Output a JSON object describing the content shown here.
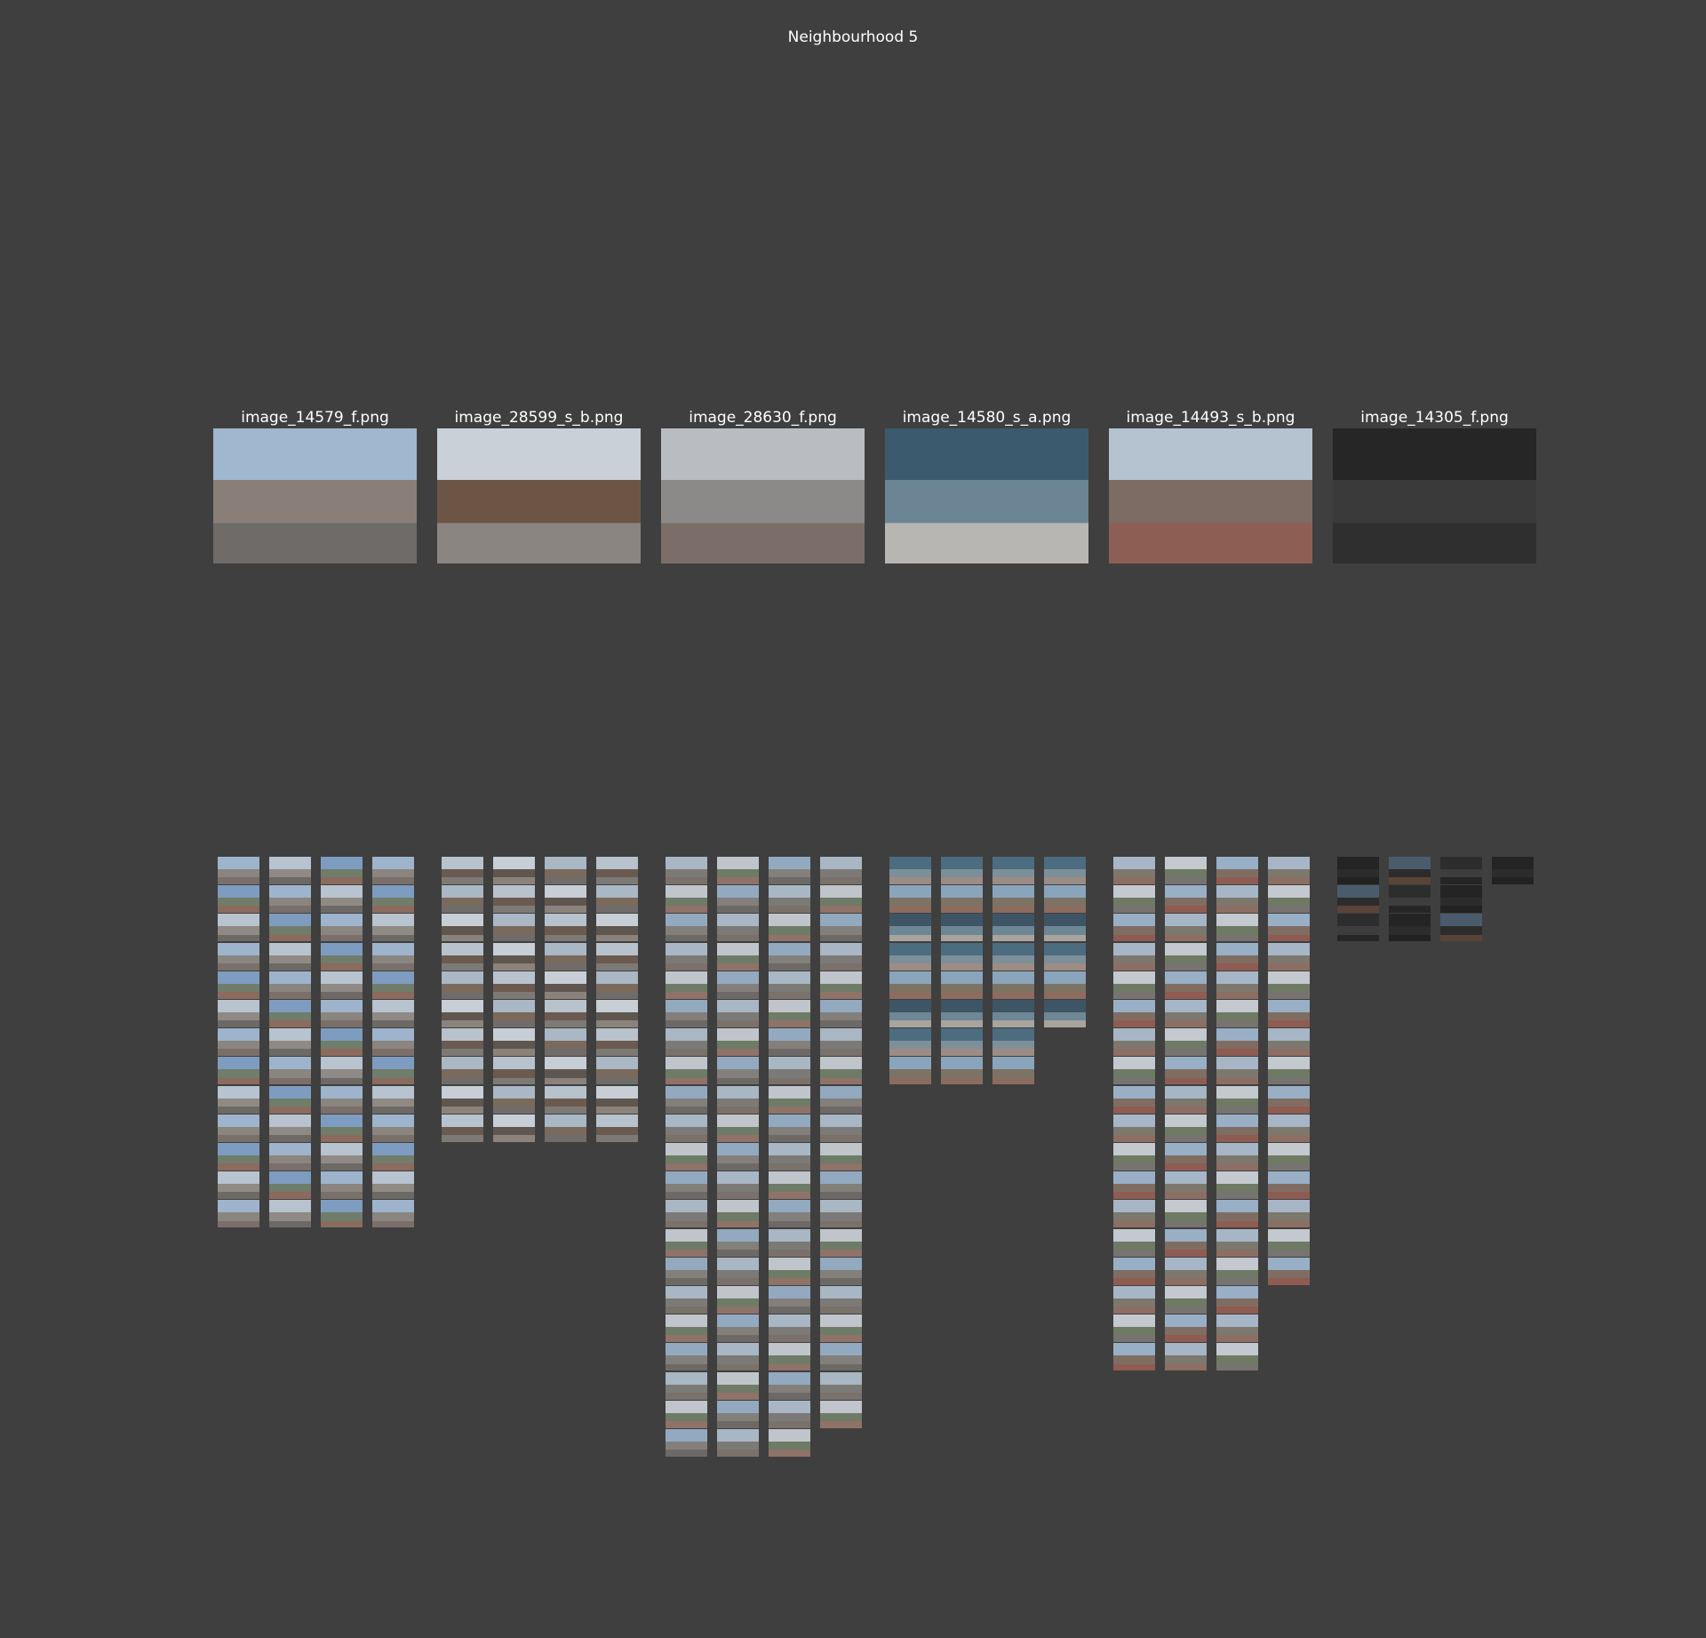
{
  "title": "Neighbourhood 5",
  "clusters": [
    {
      "caption": "image_14579_f.png",
      "thumbnail_count": 52,
      "rep_colors": [
        "#9fb7cf",
        "#8a7f78",
        "#6f6b68"
      ],
      "thumb_palette": [
        [
          "#9db4cc",
          "#8b8580",
          "#7b6f6a"
        ],
        [
          "#7e9cbf",
          "#6f7d6a",
          "#8a6b5e"
        ],
        [
          "#b7c3cf",
          "#8f8a84",
          "#6d6a66"
        ]
      ]
    },
    {
      "caption": "image_28599_s_b.png",
      "thumbnail_count": 40,
      "rep_colors": [
        "#c9d0d8",
        "#6d5546",
        "#8a8580"
      ],
      "thumb_palette": [
        [
          "#b8c2cc",
          "#6a5a50",
          "#7d7a76"
        ],
        [
          "#aab7c4",
          "#7a6a5c",
          "#6f6c69"
        ],
        [
          "#c8ced6",
          "#5f574f",
          "#8b837b"
        ]
      ]
    },
    {
      "caption": "image_28630_f.png",
      "thumbnail_count": 83,
      "rep_colors": [
        "#b9bdc2",
        "#8c8a88",
        "#7b6e68"
      ],
      "thumb_palette": [
        [
          "#a9b6c4",
          "#7c7a76",
          "#7a716b"
        ],
        [
          "#c0c5cb",
          "#6e7b66",
          "#8f7268"
        ],
        [
          "#93a9c0",
          "#83807c",
          "#6c6967"
        ]
      ]
    },
    {
      "caption": "image_14580_s_a.png",
      "thumbnail_count": 30,
      "rep_colors": [
        "#3c5a6e",
        "#6c8594",
        "#b8b6b2"
      ],
      "thumb_palette": [
        [
          "#4c6c80",
          "#7d8f99",
          "#9c8c84"
        ],
        [
          "#8aa4bb",
          "#7d7364",
          "#8b6c5f"
        ],
        [
          "#3e5566",
          "#6d8796",
          "#a8a39d"
        ]
      ]
    },
    {
      "caption": "image_14493_s_b.png",
      "thumbnail_count": 69,
      "rep_colors": [
        "#b5c2cf",
        "#7c6c64",
        "#8d5f54"
      ],
      "thumb_palette": [
        [
          "#a7b6c6",
          "#7c786e",
          "#8c6e63"
        ],
        [
          "#c3c9cf",
          "#6f7a64",
          "#777370"
        ],
        [
          "#98afc6",
          "#806d62",
          "#8e5c52"
        ]
      ]
    },
    {
      "caption": "image_14305_f.png",
      "thumbnail_count": 10,
      "rep_colors": [
        "#262626",
        "#3a3a3a",
        "#2f2f2f"
      ],
      "thumb_palette": [
        [
          "#242424",
          "#2c2c2c",
          "#222222"
        ],
        [
          "#4a5b6c",
          "#2c2c2c",
          "#5a4338"
        ],
        [
          "#2d2d2d",
          "#3d3d3d",
          "#262626"
        ]
      ]
    }
  ]
}
